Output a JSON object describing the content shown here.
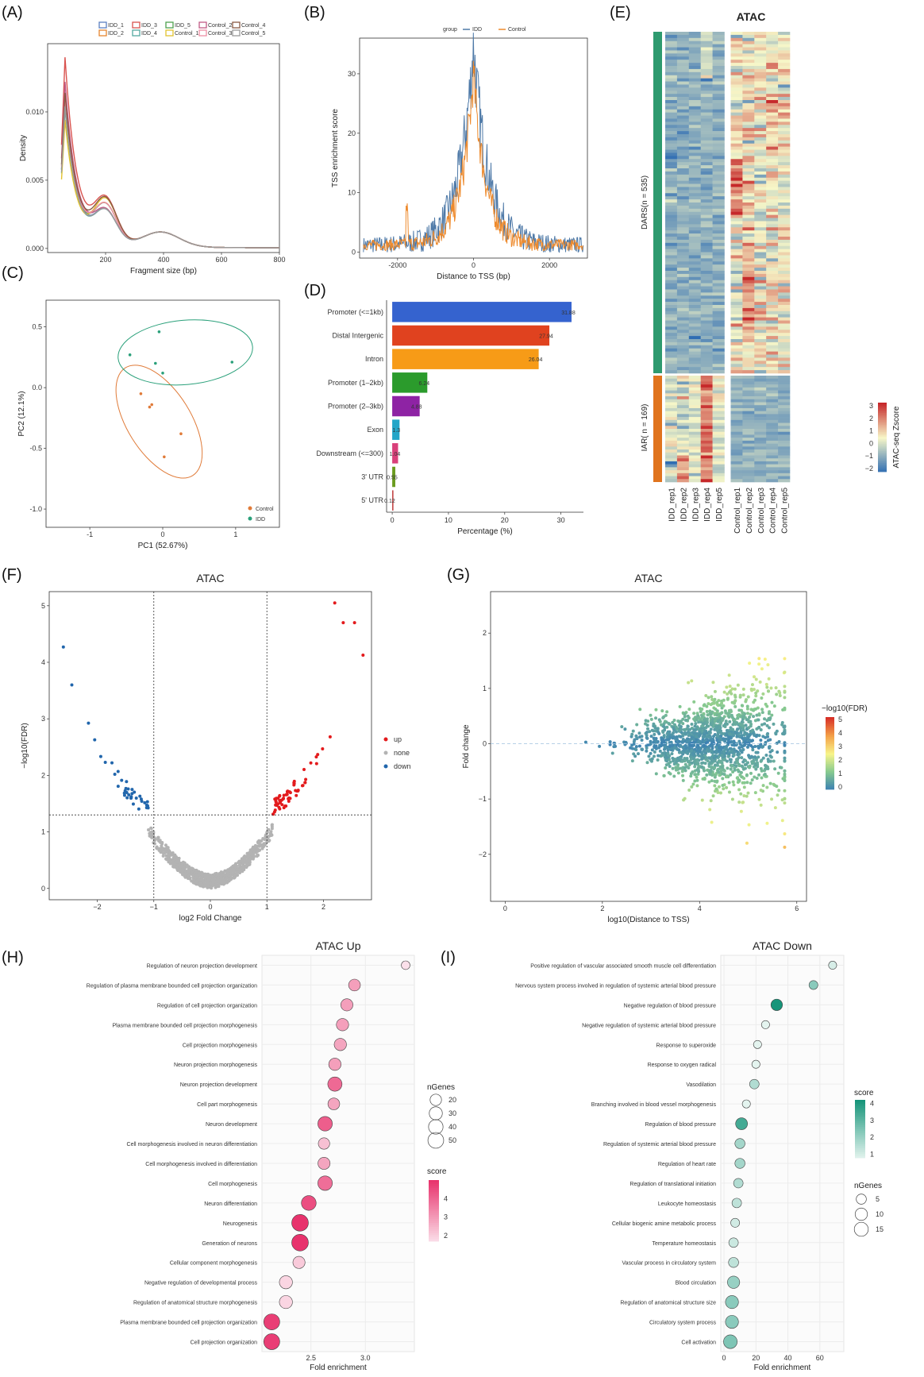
{
  "panels": {
    "A": "(A)",
    "B": "(B)",
    "C": "(C)",
    "D": "(D)",
    "E": "(E)",
    "F": "(F)",
    "G": "(G)",
    "H": "(H)",
    "I": "(I)"
  },
  "chart_data": [
    {
      "id": "A",
      "type": "line",
      "title": "",
      "xlabel": "Fragment size (bp)",
      "ylabel": "Density",
      "xlim": [
        0,
        800
      ],
      "ylim": [
        -0.0003,
        0.015
      ],
      "xticks": [
        200,
        400,
        600,
        800
      ],
      "yticks": [
        0.0,
        0.005,
        0.01
      ],
      "ytick_labels": [
        "0.000",
        "0.005",
        "0.010"
      ],
      "legend_position": "top",
      "series": [
        {
          "name": "IDD_1",
          "color": "#5b7fc1",
          "peak": 0.0105
        },
        {
          "name": "IDD_2",
          "color": "#e6862f",
          "peak": 0.011
        },
        {
          "name": "IDD_3",
          "color": "#d9534f",
          "peak": 0.0138
        },
        {
          "name": "IDD_4",
          "color": "#55a9a0",
          "peak": 0.01
        },
        {
          "name": "IDD_5",
          "color": "#4fa24f",
          "peak": 0.0105
        },
        {
          "name": "Control_1",
          "color": "#e2c230",
          "peak": 0.0092
        },
        {
          "name": "Control_2",
          "color": "#c15b86",
          "peak": 0.012
        },
        {
          "name": "Control_3",
          "color": "#ef8fa5",
          "peak": 0.0108
        },
        {
          "name": "Control_4",
          "color": "#8a5a44",
          "peak": 0.0112
        },
        {
          "name": "Control_5",
          "color": "#9a9a9a",
          "peak": 0.0102
        }
      ]
    },
    {
      "id": "B",
      "type": "line",
      "title": "",
      "xlabel": "Distance to TSS (bp)",
      "ylabel": "TSS enrichment score",
      "xlim": [
        -3000,
        3000
      ],
      "ylim": [
        -1,
        36
      ],
      "xticks": [
        -2000,
        0,
        2000
      ],
      "yticks": [
        0,
        10,
        20,
        30
      ],
      "legend_title": "group",
      "legend_position": "top",
      "series": [
        {
          "name": "IDD",
          "color": "#4f7aa8",
          "peak": 35
        },
        {
          "name": "Control",
          "color": "#ee8a2c",
          "peak": 30
        }
      ]
    },
    {
      "id": "C",
      "type": "scatter",
      "title": "",
      "xlabel": "PC1 (52.67%)",
      "ylabel": "PC2 (12.1%)",
      "xlim": [
        -1.6,
        1.6
      ],
      "ylim": [
        -1.15,
        0.72
      ],
      "xticks": [
        -1,
        0,
        1
      ],
      "yticks": [
        -1.0,
        -0.5,
        0.0,
        0.5
      ],
      "ytick_labels": [
        "-1.0",
        "-0.5",
        "0.0",
        "0.5"
      ],
      "legend_position": "bottom-right",
      "series": [
        {
          "name": "Control",
          "color": "#e07b39",
          "points": [
            [
              -0.3,
              -0.05
            ],
            [
              -0.18,
              -0.16
            ],
            [
              -0.15,
              -0.14
            ],
            [
              0.25,
              -0.38
            ],
            [
              0.02,
              -0.57
            ]
          ]
        },
        {
          "name": "IDD",
          "color": "#2aa07a",
          "points": [
            [
              -0.45,
              0.27
            ],
            [
              -0.05,
              0.46
            ],
            [
              -0.1,
              0.2
            ],
            [
              0.0,
              0.12
            ],
            [
              0.95,
              0.21
            ]
          ]
        }
      ]
    },
    {
      "id": "D",
      "type": "bar",
      "title": "",
      "xlabel": "Percentage (%)",
      "ylabel": "",
      "xlim": [
        -1,
        34
      ],
      "xticks": [
        0,
        10,
        20,
        30
      ],
      "categories": [
        "Promoter (<=1kb)",
        "Distal Intergenic",
        "Intron",
        "Promoter (1–2kb)",
        "Promoter (2–3kb)",
        "Exon",
        "Downstream (<=300)",
        "3' UTR",
        "5' UTR"
      ],
      "values": [
        31.88,
        27.94,
        26.04,
        6.24,
        4.88,
        1.3,
        1.04,
        0.55,
        0.12
      ],
      "value_labels": [
        "31.88",
        "27.94",
        "26.04",
        "6.24",
        "4.88",
        "1.3",
        "1.04",
        "0.55",
        "0.12"
      ],
      "colors": [
        "#3563cf",
        "#e0421f",
        "#f79b17",
        "#2b9b2c",
        "#8e23a4",
        "#23a6c8",
        "#d9407a",
        "#6b9c1f",
        "#bf3a3a"
      ]
    },
    {
      "id": "E",
      "type": "heatmap",
      "title": "ATAC",
      "columns": [
        "IDD_rep1",
        "IDD_rep2",
        "IDD_rep3",
        "IDD_rep4",
        "IDD_rep5",
        "Control_rep1",
        "Control_rep2",
        "Control_rep3",
        "Control_rep4",
        "Control_rep5"
      ],
      "row_groups": [
        {
          "label": "DARS(n = 535)",
          "color": "#2e9a6f"
        },
        {
          "label": "IAR( n = 169)",
          "color": "#e0741e"
        }
      ],
      "colorbar": {
        "label": "ATAC-seq Zscore",
        "ticks": [
          3,
          2,
          1,
          0,
          -1,
          -2
        ],
        "tick_labels": [
          "3",
          "2",
          "1",
          "0",
          "−1",
          "−2"
        ],
        "colors": [
          "#2f6db3",
          "#f7f7c8",
          "#c6282a"
        ]
      }
    },
    {
      "id": "F",
      "type": "scatter",
      "title": "ATAC",
      "xlabel": "log2 Fold Change",
      "ylabel": "−log10(FDR)",
      "xlim": [
        -2.85,
        2.85
      ],
      "ylim": [
        -0.2,
        5.25
      ],
      "xticks": [
        -2,
        -1,
        0,
        1,
        2
      ],
      "yticks": [
        0,
        1,
        2,
        3,
        4,
        5
      ],
      "xtick_labels": [
        "−2",
        "−1",
        "0",
        "1",
        "2"
      ],
      "thresholds": {
        "x": [
          -1,
          1
        ],
        "y": 1.3
      },
      "legend_position": "right",
      "series": [
        {
          "name": "up",
          "color": "#e31a1c"
        },
        {
          "name": "none",
          "color": "#b3b3b3"
        },
        {
          "name": "down",
          "color": "#2166ac"
        }
      ]
    },
    {
      "id": "G",
      "type": "scatter",
      "title": "ATAC",
      "xlabel": "log10(Distance to TSS)",
      "ylabel": "Fold change",
      "xlim": [
        -0.3,
        6.2
      ],
      "ylim": [
        -2.85,
        2.75
      ],
      "xticks": [
        0,
        2,
        4,
        6
      ],
      "yticks": [
        -2,
        -1,
        0,
        1,
        2
      ],
      "ytick_labels": [
        "−2",
        "−1",
        "0",
        "1",
        "2"
      ],
      "colorbar": {
        "label": "−log10(FDR)",
        "ticks": [
          5,
          4,
          3,
          2,
          1,
          0
        ],
        "colors": [
          "#3a7fb4",
          "#86c98f",
          "#f7f48a",
          "#f4a148",
          "#d73027"
        ]
      }
    },
    {
      "id": "H",
      "type": "scatter",
      "title": "ATAC Up",
      "xlabel": "Fold enrichment",
      "ylabel": "",
      "xlim": [
        2.05,
        3.45
      ],
      "xticks": [
        2.5,
        3.0
      ],
      "xtick_labels": [
        "2.5",
        "3.0"
      ],
      "categories": [
        "Regulation of neuron projection development",
        "Regulation of plasma membrane bounded cell projection organization",
        "Regulation of cell projection organization",
        "Plasma membrane bounded cell projection morphogenesis",
        "Cell projection morphogenesis",
        "Neuron projection morphogenesis",
        "Neuron projection development",
        "Cell part morphogenesis",
        "Neuron development",
        "Cell morphogenesis involved in neuron differentiation",
        "Cell morphogenesis involved in differentiation",
        "Cell morphogenesis",
        "Neuron differentiation",
        "Neurogenesis",
        "Generation of neurons",
        "Cellular component morphogenesis",
        "Negative regulation of developmental process",
        "Regulation of anatomical structure morphogenesis",
        "Plasma membrane bounded cell projection organization",
        "Cell projection organization"
      ],
      "values": [
        3.37,
        2.9,
        2.83,
        2.79,
        2.77,
        2.72,
        2.72,
        2.71,
        2.63,
        2.62,
        2.62,
        2.63,
        2.48,
        2.4,
        2.4,
        2.39,
        2.27,
        2.27,
        2.14,
        2.14
      ],
      "ngenes": [
        8,
        22,
        24,
        25,
        25,
        25,
        38,
        22,
        40,
        20,
        24,
        40,
        42,
        58,
        58,
        24,
        30,
        30,
        52,
        52
      ],
      "score": [
        1.8,
        3.0,
        3.0,
        3.0,
        2.9,
        3.0,
        4.0,
        2.9,
        4.2,
        2.4,
        2.9,
        3.9,
        4.5,
        5.0,
        5.0,
        2.2,
        2.0,
        2.0,
        4.8,
        4.8
      ],
      "legend": {
        "size_title": "nGenes",
        "size_ticks": [
          20,
          30,
          40,
          50
        ],
        "color_title": "score",
        "color_ticks": [
          4,
          3,
          2
        ],
        "colors": [
          "#fbe0ea",
          "#e8336d"
        ]
      }
    },
    {
      "id": "I",
      "type": "scatter",
      "title": "ATAC Down",
      "xlabel": "Fold enrichment",
      "ylabel": "",
      "xlim": [
        -2,
        75
      ],
      "xticks": [
        0,
        20,
        40,
        60
      ],
      "categories": [
        "Positive regulation of vascular associated smooth muscle cell differentiation",
        "Nervous system process involved in regulation of systemic arterial blood pressure",
        "Negative regulation of blood pressure",
        "Negative regulation of systemic arterial blood pressure",
        "Response to superoxide",
        "Response to oxygen radical",
        "Vasodilation",
        "Branching involved in blood vessel morphogenesis",
        "Regulation of blood pressure",
        "Regulation of systemic arterial blood pressure",
        "Regulation of heart rate",
        "Regulation of translational initiation",
        "Leukocyte homeostasis",
        "Cellular biogenic amine metabolic process",
        "Temperature homeostasis",
        "Vascular process in circulatory system",
        "Blood circulation",
        "Regulation of anatomical structure size",
        "Circulatory system process",
        "Cell activation"
      ],
      "values": [
        68,
        56,
        33,
        26,
        21,
        20,
        19,
        14,
        11,
        10,
        10,
        9,
        8,
        7,
        6,
        6,
        6,
        5,
        5,
        4
      ],
      "ngenes": [
        2,
        3,
        8,
        2,
        2,
        2,
        4,
        2,
        9,
        5,
        5,
        4,
        4,
        3,
        4,
        5,
        10,
        12,
        12,
        14
      ],
      "score": [
        1.2,
        2.4,
        4.2,
        1.0,
        1.0,
        1.0,
        1.8,
        1.0,
        3.5,
        2.0,
        2.0,
        1.8,
        1.6,
        1.3,
        1.4,
        1.6,
        2.2,
        2.4,
        2.4,
        2.6
      ],
      "legend": {
        "color_title": "score",
        "color_ticks": [
          4,
          3,
          2,
          1
        ],
        "size_title": "nGenes",
        "size_ticks": [
          5,
          10,
          15
        ],
        "colors": [
          "#e4f4ef",
          "#17957a"
        ]
      }
    }
  ]
}
